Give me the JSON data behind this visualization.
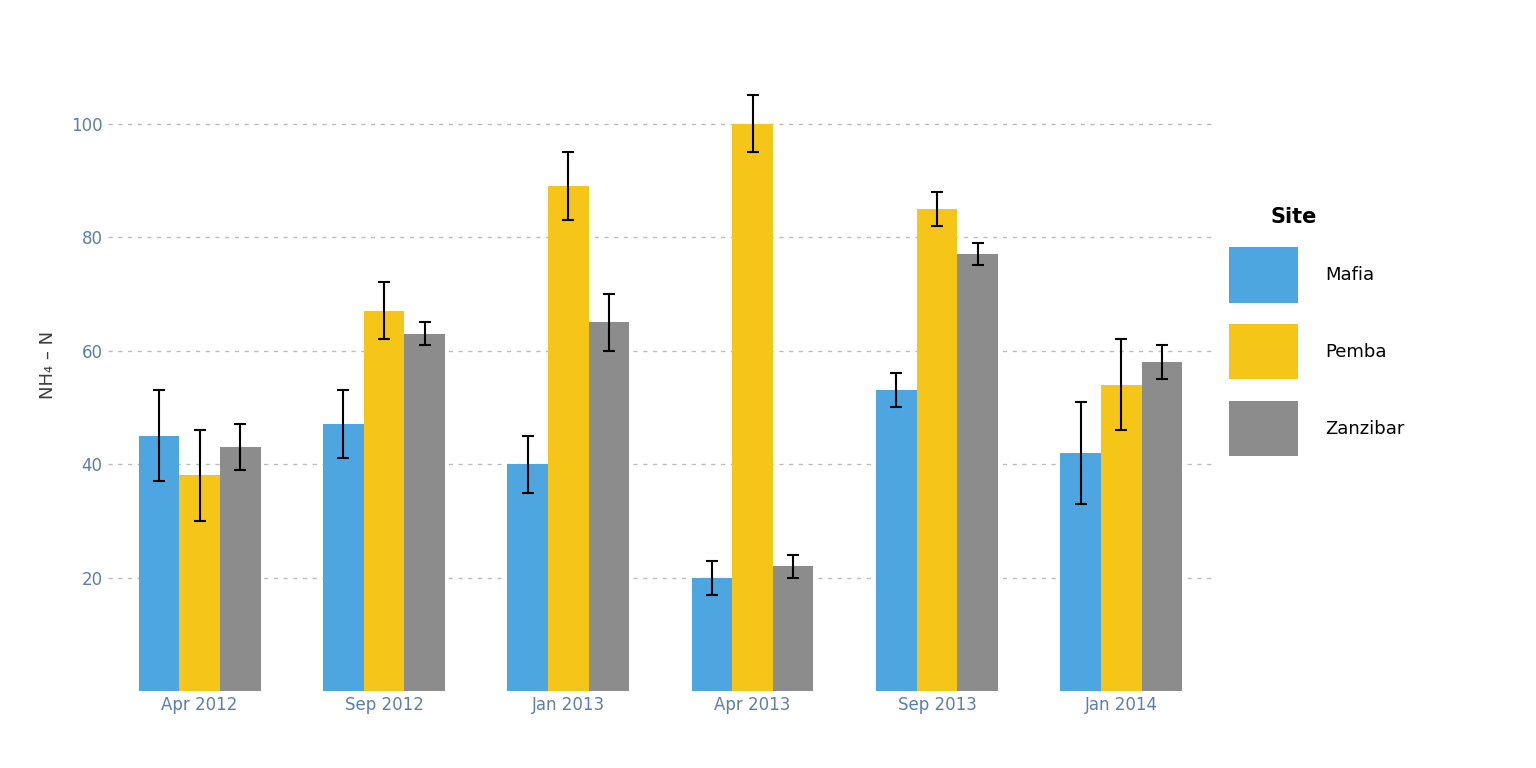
{
  "categories": [
    "Apr 2012",
    "Sep 2012",
    "Jan 2013",
    "Apr 2013",
    "Sep 2013",
    "Jan 2014"
  ],
  "sites": [
    "Mafia",
    "Pemba",
    "Zanzibar"
  ],
  "means": {
    "Mafia": [
      45,
      47,
      40,
      20,
      53,
      42
    ],
    "Pemba": [
      38,
      67,
      89,
      100,
      85,
      54
    ],
    "Zanzibar": [
      43,
      63,
      65,
      22,
      77,
      58
    ]
  },
  "errors": {
    "Mafia": [
      8,
      6,
      5,
      3,
      3,
      9
    ],
    "Pemba": [
      8,
      5,
      6,
      5,
      3,
      8
    ],
    "Zanzibar": [
      4,
      2,
      5,
      2,
      2,
      3
    ]
  },
  "colors": {
    "Mafia": "#4DA6E0",
    "Pemba": "#F5C518",
    "Zanzibar": "#8C8C8C"
  },
  "ylabel": "NH₄ – N",
  "legend_title": "Site",
  "ylim": [
    0,
    115
  ],
  "yticks": [
    20,
    40,
    60,
    80,
    100
  ],
  "background_color": "#FFFFFF",
  "bar_width": 0.22,
  "axis_fontsize": 13,
  "tick_fontsize": 12,
  "legend_fontsize": 13,
  "tick_label_color": "#5B7FA6",
  "axis_label_color": "#3D3D3D",
  "grid_color": "#BBBBBB"
}
